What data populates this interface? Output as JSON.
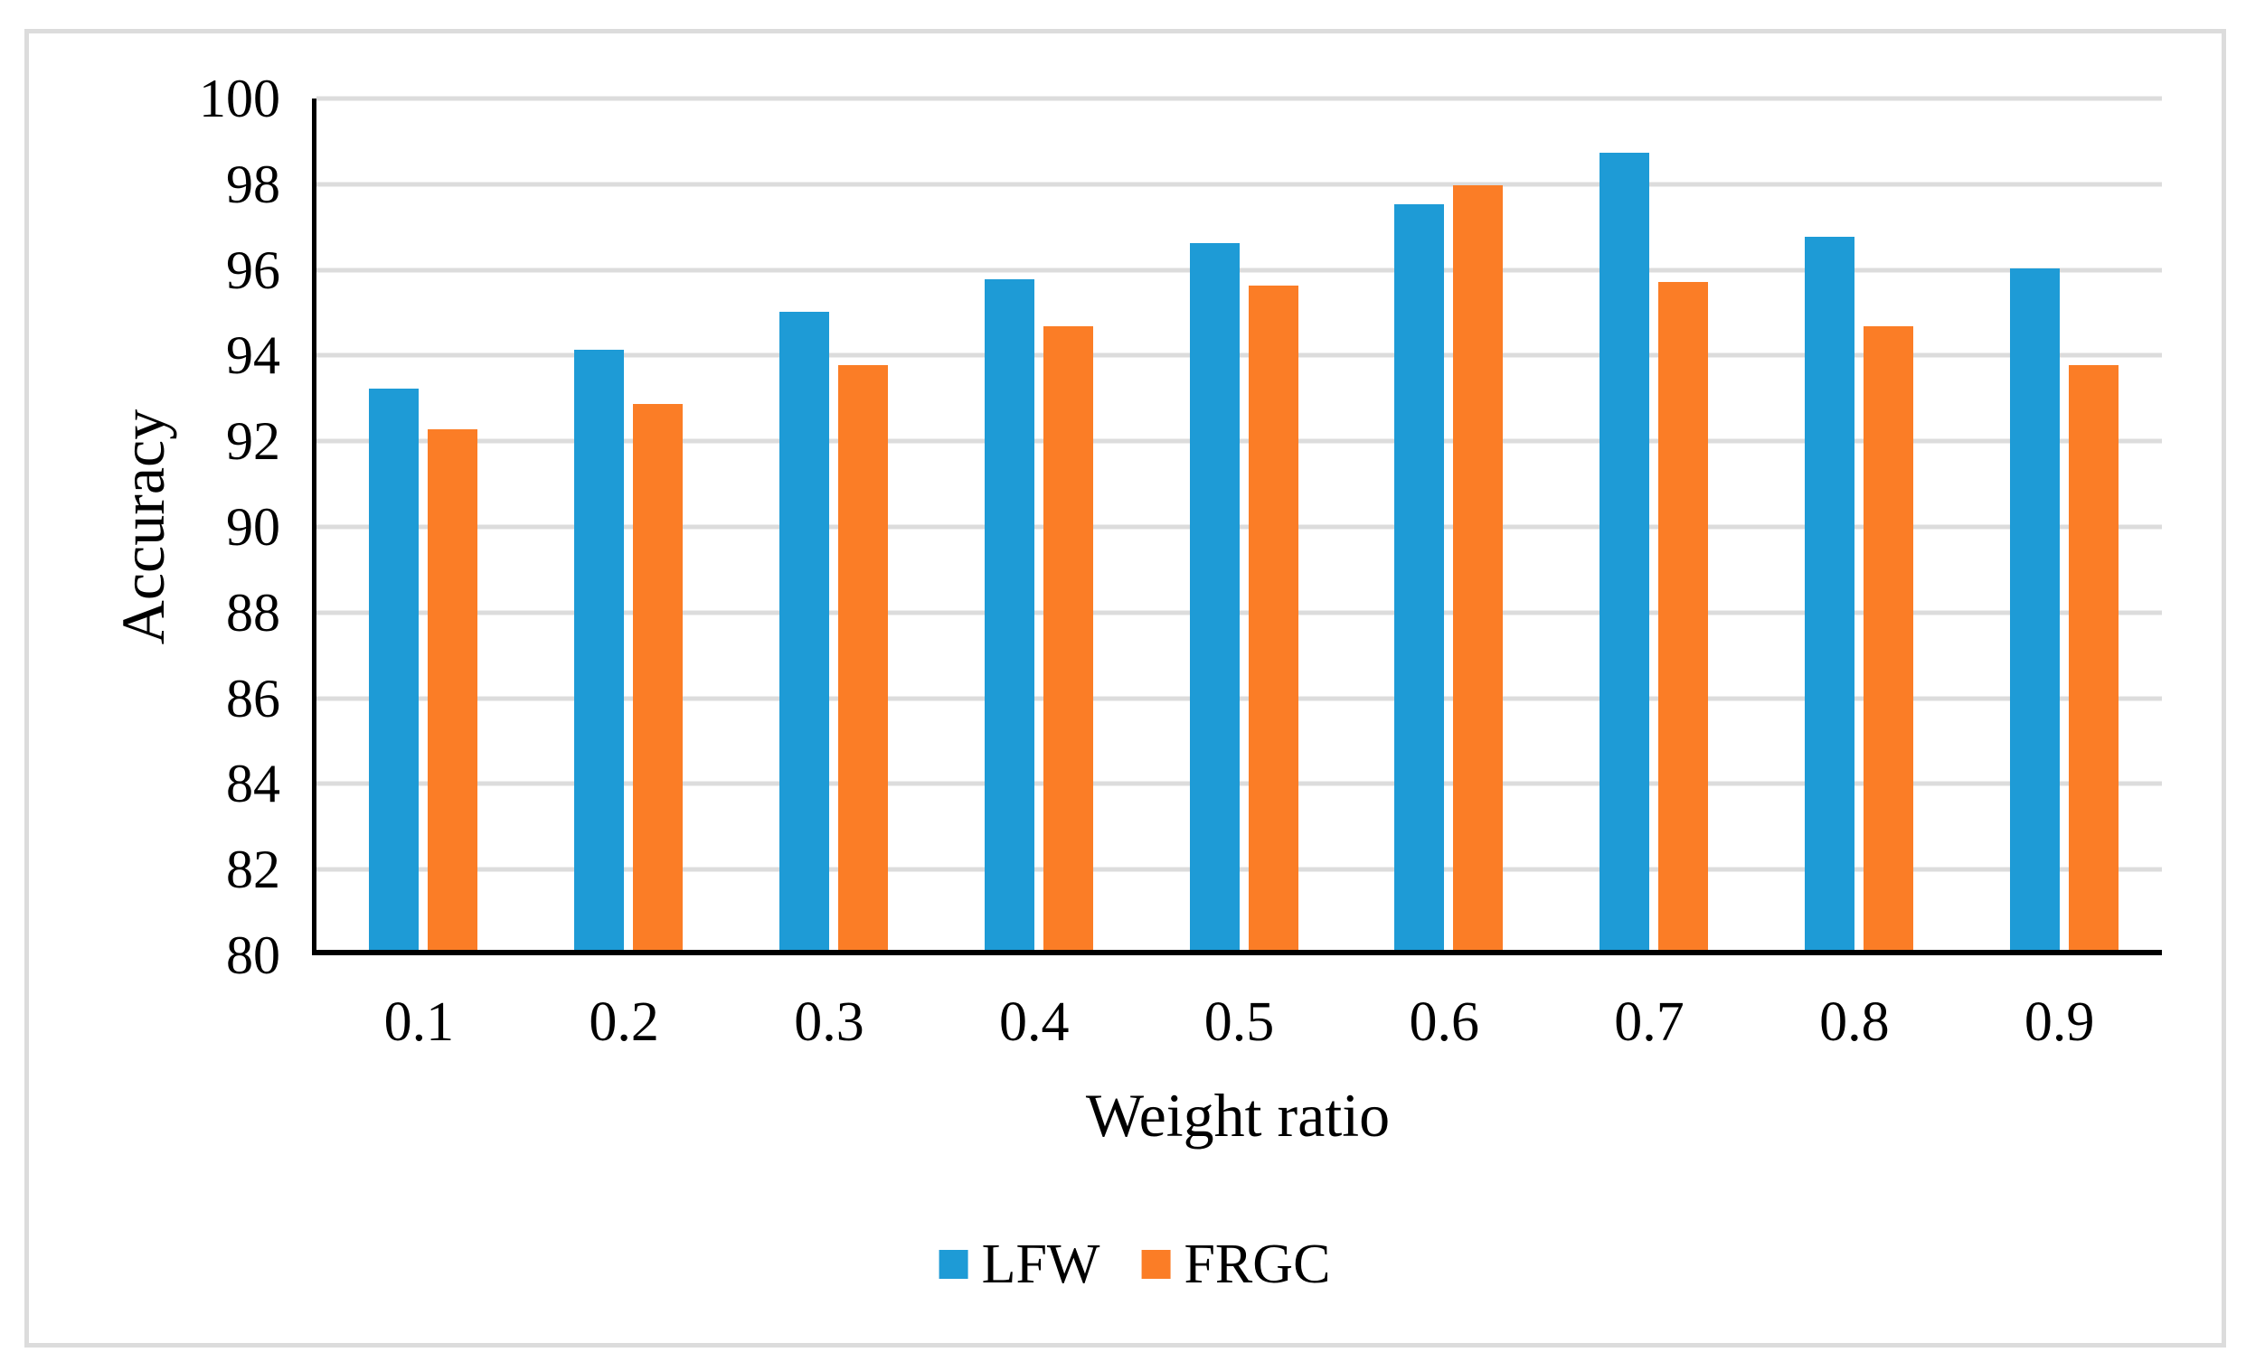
{
  "chart_data": {
    "type": "bar",
    "title": "",
    "xlabel": "Weight ratio",
    "ylabel": "Accuracy",
    "categories": [
      "0.1",
      "0.2",
      "0.3",
      "0.4",
      "0.5",
      "0.6",
      "0.7",
      "0.8",
      "0.9"
    ],
    "series": [
      {
        "name": "LFW",
        "color": "#1E9BD6",
        "values": [
          93.1,
          94.0,
          94.9,
          95.65,
          96.5,
          97.4,
          98.6,
          96.65,
          95.9
        ]
      },
      {
        "name": "FRGC",
        "color": "#FB7D26",
        "values": [
          92.15,
          92.75,
          93.65,
          94.55,
          95.5,
          97.85,
          95.6,
          94.55,
          93.65
        ]
      }
    ],
    "ylim": [
      80,
      100
    ],
    "yticks": [
      100,
      98,
      96,
      94,
      92,
      90,
      88,
      86,
      84,
      82,
      80
    ],
    "grid": true,
    "gridline_color": "#DCDCDC",
    "legend_position": "bottom"
  }
}
